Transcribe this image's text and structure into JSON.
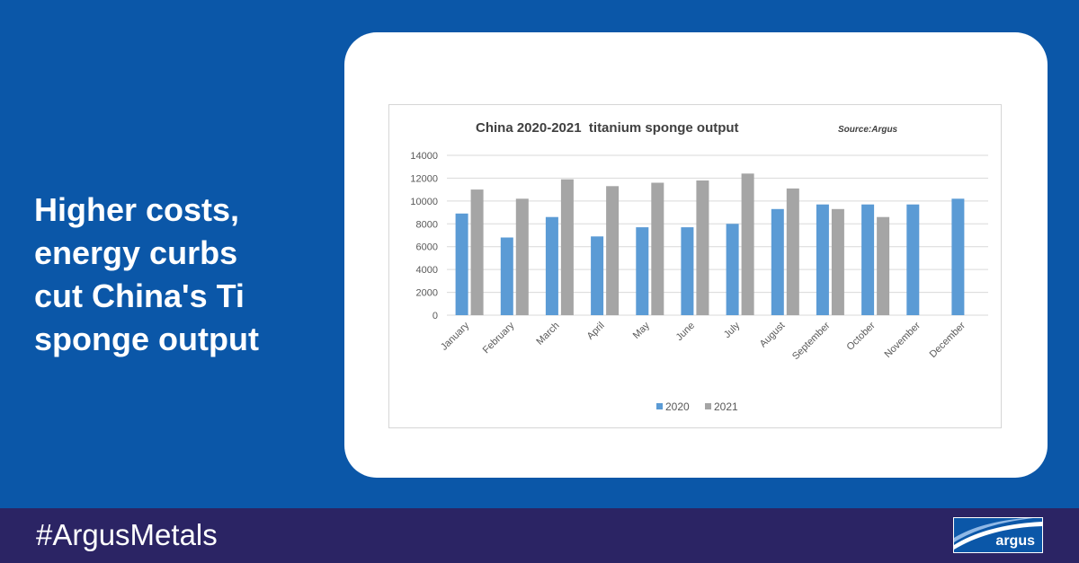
{
  "headline": {
    "line1": "Higher costs,",
    "line2": "energy curbs",
    "line3": "cut China's Ti",
    "line4": "sponge output"
  },
  "footer": {
    "hashtag": "#ArgusMetals",
    "logo_text": "argus"
  },
  "colors": {
    "background": "#0b57a8",
    "footer": "#2b2464",
    "series_2020": "#5b9bd5",
    "series_2021": "#a5a5a5"
  },
  "chart_data": {
    "type": "bar",
    "title": "China 2020-2021  titanium sponge output",
    "source_note": "Source:Argus",
    "categories": [
      "January",
      "February",
      "March",
      "April",
      "May",
      "June",
      "July",
      "August",
      "September",
      "October",
      "November",
      "December"
    ],
    "series": [
      {
        "name": "2020",
        "values": [
          8900,
          6800,
          8600,
          6900,
          7700,
          7700,
          8000,
          9300,
          9700,
          9700,
          9700,
          10200
        ]
      },
      {
        "name": "2021",
        "values": [
          11000,
          10200,
          11900,
          11300,
          11600,
          11800,
          12400,
          11100,
          9300,
          8600,
          null,
          null
        ]
      }
    ],
    "ylim": [
      0,
      14000
    ],
    "yticks": [
      "0",
      "2000",
      "4000",
      "6000",
      "8000",
      "10000",
      "12000",
      "14000"
    ],
    "grid": true,
    "legend_position": "bottom"
  }
}
